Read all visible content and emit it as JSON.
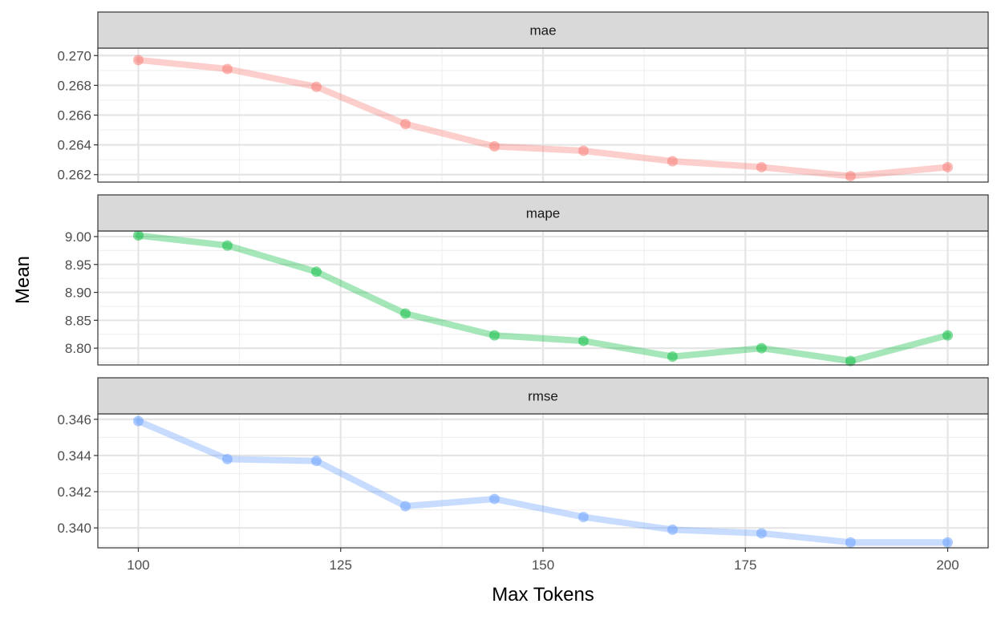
{
  "chart_data": {
    "type": "line",
    "facet_by": "metric",
    "layout": "3 stacked facet panels sharing x axis",
    "theme": "bw",
    "grid": true,
    "xlabel": "Max Tokens",
    "ylabel": "Mean",
    "x": [
      100,
      111,
      122,
      133,
      144,
      155,
      166,
      177,
      188,
      200
    ],
    "xlim": [
      95,
      205
    ],
    "x_ticks": [
      100,
      125,
      150,
      175,
      200
    ],
    "panels": [
      {
        "strip": "mae",
        "color": "#F8766D",
        "ylim": [
          0.2615,
          0.2705
        ],
        "y_ticks": [
          "0.262",
          "0.264",
          "0.266",
          "0.268",
          "0.270"
        ],
        "y_tick_values": [
          0.262,
          0.264,
          0.266,
          0.268,
          0.27
        ],
        "values": [
          0.2697,
          0.2691,
          0.2679,
          0.2654,
          0.2639,
          0.2636,
          0.2629,
          0.2625,
          0.2619,
          0.2625
        ]
      },
      {
        "strip": "mape",
        "color": "#00BA38",
        "ylim": [
          8.77,
          9.01
        ],
        "y_ticks": [
          "8.80",
          "8.85",
          "8.90",
          "8.95",
          "9.00"
        ],
        "y_tick_values": [
          8.8,
          8.85,
          8.9,
          8.95,
          9.0
        ],
        "values": [
          9.002,
          8.984,
          8.937,
          8.862,
          8.823,
          8.813,
          8.785,
          8.8,
          8.777,
          8.823
        ]
      },
      {
        "strip": "rmse",
        "color": "#619CFF",
        "ylim": [
          0.3389,
          0.3463
        ],
        "y_ticks": [
          "0.340",
          "0.342",
          "0.344",
          "0.346"
        ],
        "y_tick_values": [
          0.34,
          0.342,
          0.344,
          0.346
        ],
        "values": [
          0.3459,
          0.3438,
          0.3437,
          0.3412,
          0.3416,
          0.3406,
          0.3399,
          0.3397,
          0.3392,
          0.3392
        ]
      }
    ]
  }
}
